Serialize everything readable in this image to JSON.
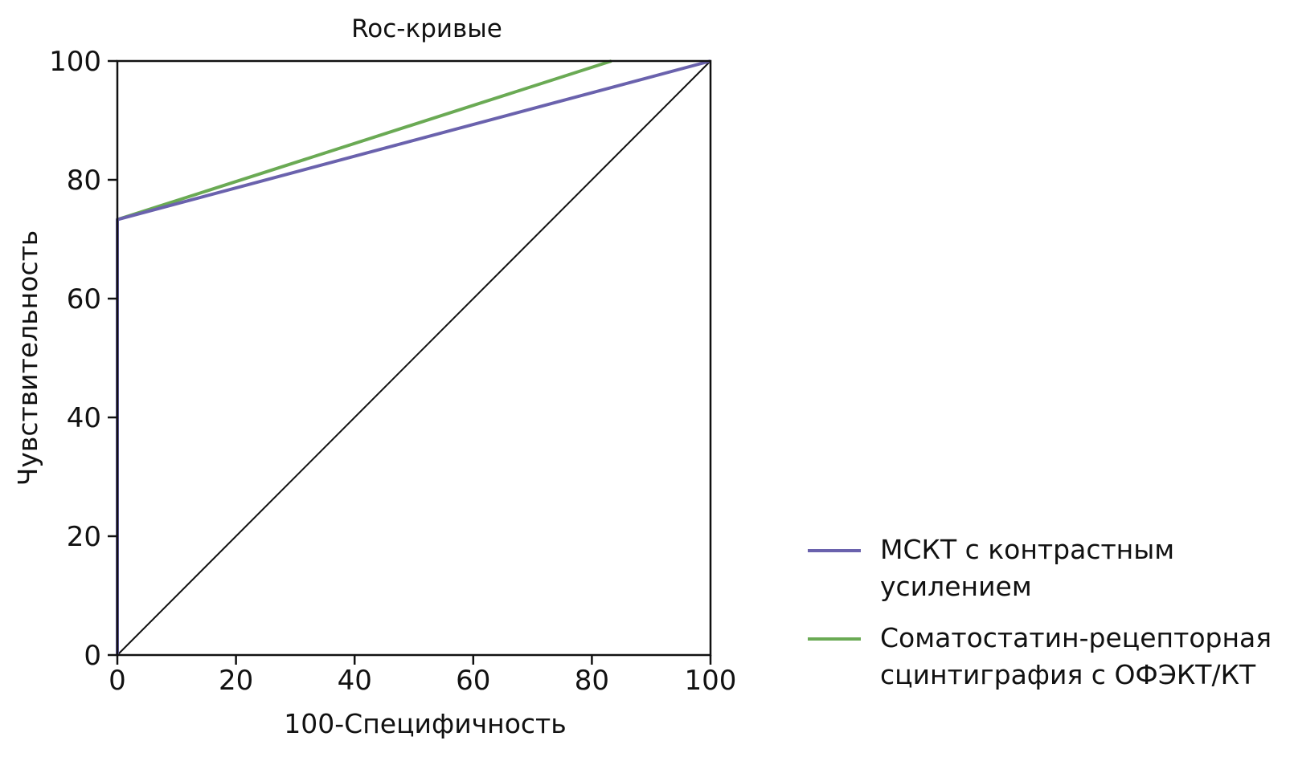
{
  "chart_data": {
    "type": "line",
    "title": "Roc-кривые",
    "xlabel": "100-Специфичность",
    "ylabel": "Чувствительность",
    "xlim": [
      0,
      100
    ],
    "ylim": [
      0,
      100
    ],
    "xticks": [
      "0",
      "20",
      "40",
      "60",
      "80",
      "100"
    ],
    "yticks": [
      "0",
      "20",
      "40",
      "60",
      "80",
      "100"
    ],
    "grid": false,
    "legend_position": "bottom-right, outside plot",
    "series": [
      {
        "name": "МСКТ с контрастным усилением",
        "color": "#6a62ad",
        "x": [
          0,
          0,
          100
        ],
        "y": [
          0,
          73.3,
          100
        ]
      },
      {
        "name": "Соматостатин-рецепторная сцинтиграфия с ОФЭКТ/КТ",
        "color": "#6aaa54",
        "x": [
          0,
          0,
          83.3
        ],
        "y": [
          0,
          73.3,
          100
        ]
      }
    ],
    "reference_line": {
      "color": "#111111",
      "x": [
        0,
        100
      ],
      "y": [
        0,
        100
      ]
    }
  }
}
